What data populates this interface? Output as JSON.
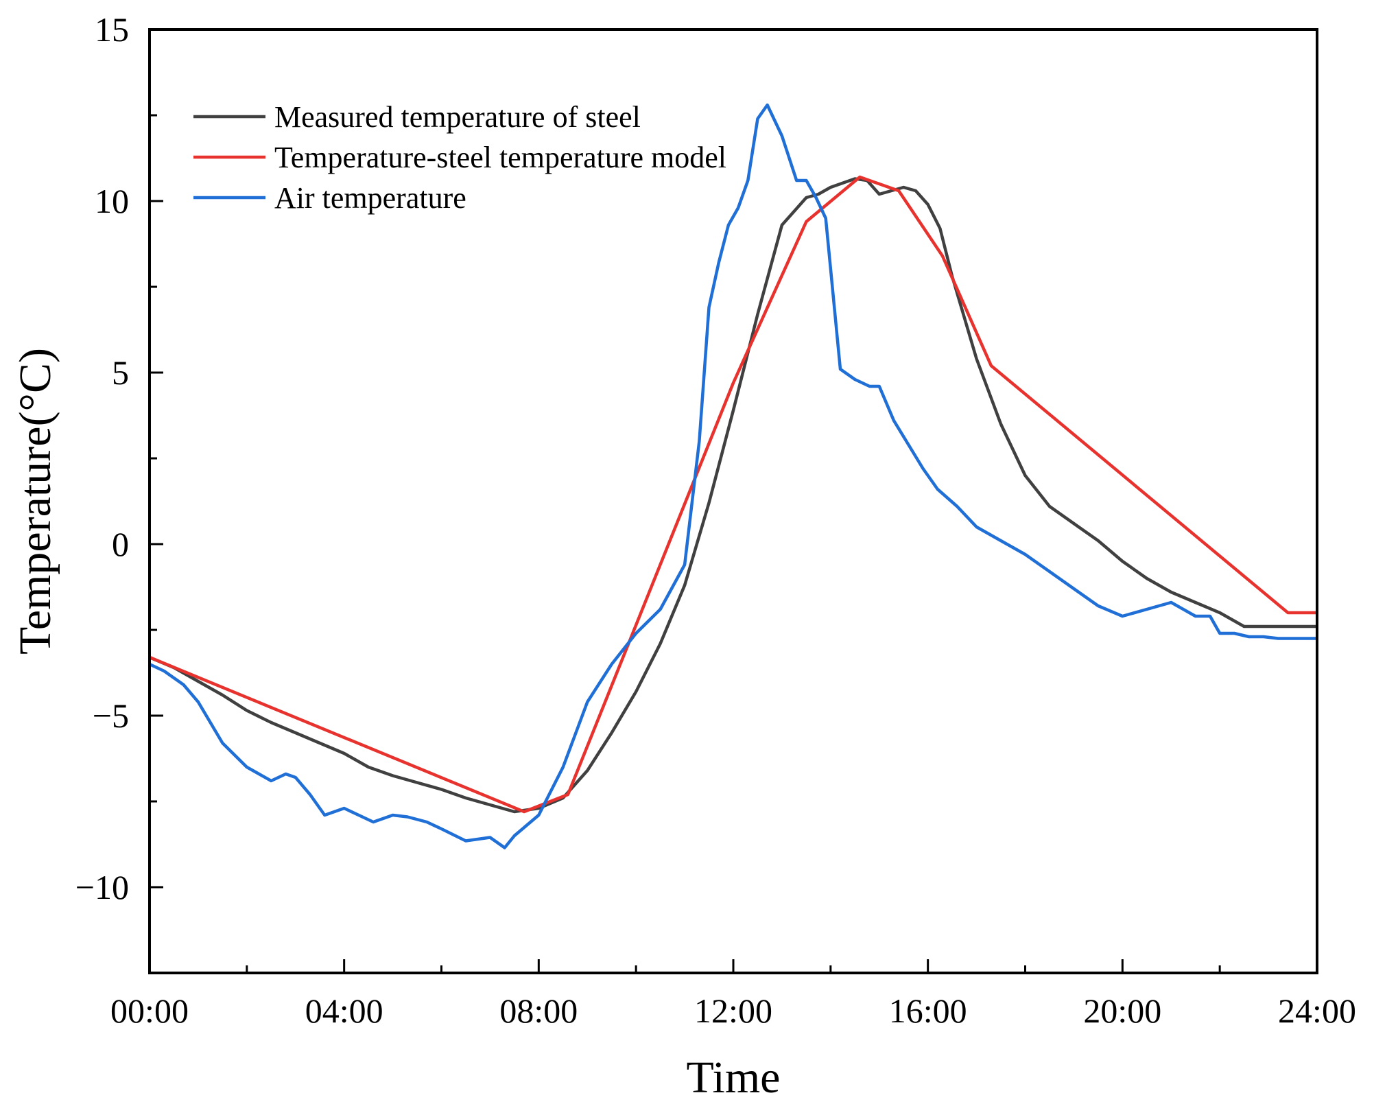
{
  "chart_data": {
    "type": "line",
    "title": "",
    "xlabel": "Time",
    "ylabel": "Temperature(°C)",
    "x_unit": "hours",
    "xlim": [
      0,
      24
    ],
    "ylim": [
      -12.5,
      15
    ],
    "x_ticks": [
      {
        "value": 0,
        "label": "00:00"
      },
      {
        "value": 4,
        "label": "04:00"
      },
      {
        "value": 8,
        "label": "08:00"
      },
      {
        "value": 12,
        "label": "12:00"
      },
      {
        "value": 16,
        "label": "16:00"
      },
      {
        "value": 20,
        "label": "20:00"
      },
      {
        "value": 24,
        "label": "24:00"
      }
    ],
    "x_minor_ticks": [
      2,
      6,
      10,
      14,
      18,
      22
    ],
    "y_ticks": [
      {
        "value": -10,
        "label": "−10"
      },
      {
        "value": -5,
        "label": "−5"
      },
      {
        "value": 0,
        "label": "0"
      },
      {
        "value": 5,
        "label": "5"
      },
      {
        "value": 10,
        "label": "10"
      },
      {
        "value": 15,
        "label": "15"
      }
    ],
    "y_minor_ticks": [
      -12.5,
      -7.5,
      -2.5,
      2.5,
      7.5,
      12.5
    ],
    "grid": false,
    "legend_position": "top-left",
    "series": [
      {
        "name": "Measured temperature of steel",
        "color": "#404040",
        "x": [
          0,
          0.5,
          1,
          1.5,
          2,
          2.5,
          3,
          3.5,
          4,
          4.5,
          5,
          5.5,
          6,
          6.5,
          7,
          7.5,
          8,
          8.5,
          9,
          9.5,
          10,
          10.5,
          11,
          11.5,
          12,
          12.5,
          13,
          13.5,
          13.75,
          14,
          14.5,
          14.75,
          15,
          15.25,
          15.5,
          15.75,
          16,
          16.25,
          16.5,
          17,
          17.5,
          18,
          18.5,
          19,
          19.5,
          20,
          20.5,
          21,
          21.5,
          22,
          22.5,
          23,
          23.4,
          24
        ],
        "y": [
          -3.3,
          -3.6,
          -4,
          -4.4,
          -4.85,
          -5.2,
          -5.5,
          -5.8,
          -6.1,
          -6.5,
          -6.75,
          -6.95,
          -7.15,
          -7.4,
          -7.6,
          -7.8,
          -7.7,
          -7.4,
          -6.6,
          -5.5,
          -4.3,
          -2.9,
          -1.2,
          1.2,
          3.9,
          6.7,
          9.3,
          10.1,
          10.2,
          10.4,
          10.65,
          10.6,
          10.2,
          10.3,
          10.4,
          10.3,
          9.9,
          9.2,
          7.8,
          5.4,
          3.5,
          2,
          1.1,
          0.6,
          0.1,
          -0.5,
          -1,
          -1.4,
          -1.7,
          -2,
          -2.4,
          -2.4,
          -2.4,
          -2.4
        ]
      },
      {
        "name": "Temperature-steel temperature model",
        "color": "#e8322e",
        "x": [
          0,
          7.7,
          8.6,
          12,
          13.5,
          14.6,
          15.4,
          16.3,
          17.3,
          23.4,
          24
        ],
        "y": [
          -3.3,
          -7.8,
          -7.3,
          4.7,
          9.4,
          10.7,
          10.3,
          8.4,
          5.2,
          -2,
          -2
        ],
        "model_breakpoints_note": ""
      },
      {
        "name": "Air temperature",
        "color": "#1f6fd6",
        "x": [
          0,
          0.3,
          0.7,
          1,
          1.5,
          2,
          2.5,
          2.8,
          3,
          3.3,
          3.6,
          4,
          4.3,
          4.6,
          5,
          5.3,
          5.7,
          6,
          6.5,
          7,
          7.3,
          7.5,
          8,
          8.5,
          9,
          9.5,
          10,
          10.5,
          11,
          11.3,
          11.5,
          11.7,
          11.9,
          12.1,
          12.3,
          12.5,
          12.7,
          13,
          13.3,
          13.5,
          13.7,
          13.9,
          14.2,
          14.5,
          14.8,
          15,
          15.3,
          15.6,
          15.9,
          16.2,
          16.6,
          17,
          17.5,
          18,
          18.5,
          19,
          19.5,
          20,
          20.5,
          21,
          21.5,
          21.8,
          22,
          22.3,
          22.6,
          22.9,
          23.2,
          23.5,
          24
        ],
        "y": [
          -3.5,
          -3.7,
          -4.1,
          -4.6,
          -5.8,
          -6.5,
          -6.9,
          -6.7,
          -6.8,
          -7.3,
          -7.9,
          -7.7,
          -7.9,
          -8.1,
          -7.9,
          -7.95,
          -8.1,
          -8.3,
          -8.65,
          -8.55,
          -8.85,
          -8.5,
          -7.9,
          -6.5,
          -4.6,
          -3.5,
          -2.6,
          -1.9,
          -0.6,
          3,
          6.9,
          8.2,
          9.3,
          9.8,
          10.6,
          12.4,
          12.8,
          11.9,
          10.6,
          10.6,
          10.1,
          9.5,
          5.1,
          4.8,
          4.6,
          4.6,
          3.6,
          2.9,
          2.2,
          1.6,
          1.1,
          0.5,
          0.1,
          -0.3,
          -0.8,
          -1.3,
          -1.8,
          -2.1,
          -1.9,
          -1.7,
          -2.1,
          -2.1,
          -2.6,
          -2.6,
          -2.7,
          -2.7,
          -2.75,
          -2.75,
          -2.75
        ]
      }
    ]
  }
}
